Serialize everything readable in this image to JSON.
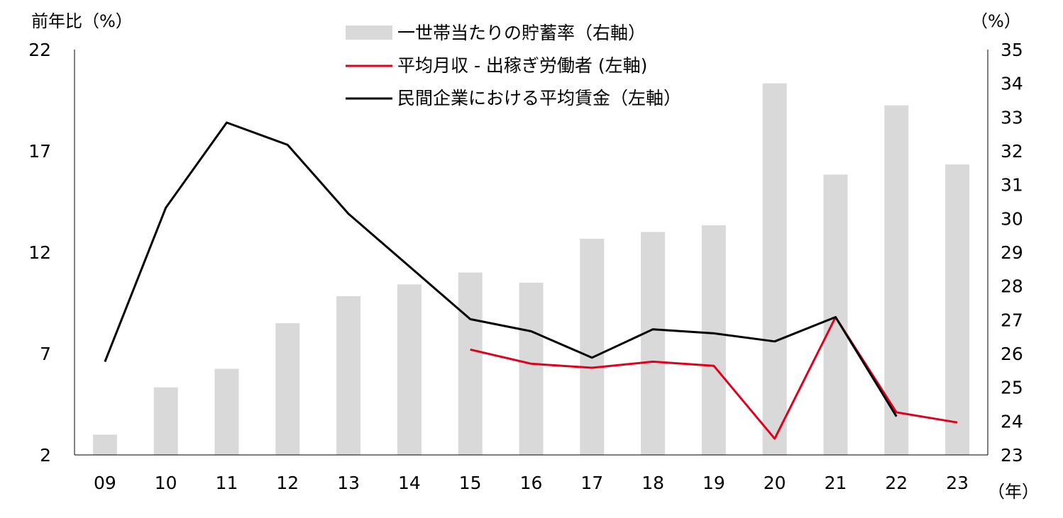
{
  "chart_data": {
    "type": "bar+line",
    "categories": [
      "09",
      "10",
      "11",
      "12",
      "13",
      "14",
      "15",
      "16",
      "17",
      "18",
      "19",
      "20",
      "21",
      "22",
      "23"
    ],
    "series": [
      {
        "name": "一世帯当たりの貯蓄率（右軸）",
        "kind": "bar",
        "axis": "right",
        "color": "#d9d9d9",
        "values": [
          23.6,
          25.0,
          25.55,
          26.9,
          27.7,
          28.05,
          28.4,
          28.1,
          29.4,
          29.6,
          29.8,
          34.0,
          31.3,
          33.35,
          31.6
        ]
      },
      {
        "name": "平均月収 - 出稼ぎ労働者 (左軸)",
        "kind": "line",
        "axis": "left",
        "color": "#e0001b",
        "values": [
          null,
          null,
          null,
          null,
          null,
          null,
          7.2,
          6.5,
          6.3,
          6.6,
          6.4,
          2.8,
          8.8,
          4.1,
          3.6
        ]
      },
      {
        "name": "民間企業における平均賃金（左軸）",
        "kind": "line",
        "axis": "left",
        "color": "#000000",
        "values": [
          6.6,
          14.2,
          18.4,
          17.3,
          13.9,
          11.3,
          8.7,
          8.1,
          6.8,
          8.2,
          8.0,
          7.6,
          8.8,
          3.9,
          null
        ]
      }
    ],
    "left_axis": {
      "label": "前年比（%）",
      "ticks": [
        "22",
        "17",
        "12",
        "7",
        "2"
      ],
      "range": [
        2,
        22
      ]
    },
    "right_axis": {
      "label": "（%）",
      "ticks": [
        "35",
        "34",
        "33",
        "32",
        "31",
        "30",
        "29",
        "28",
        "27",
        "26",
        "25",
        "24",
        "23"
      ],
      "range": [
        23,
        35
      ]
    },
    "x_axis_unit": "（年）"
  }
}
